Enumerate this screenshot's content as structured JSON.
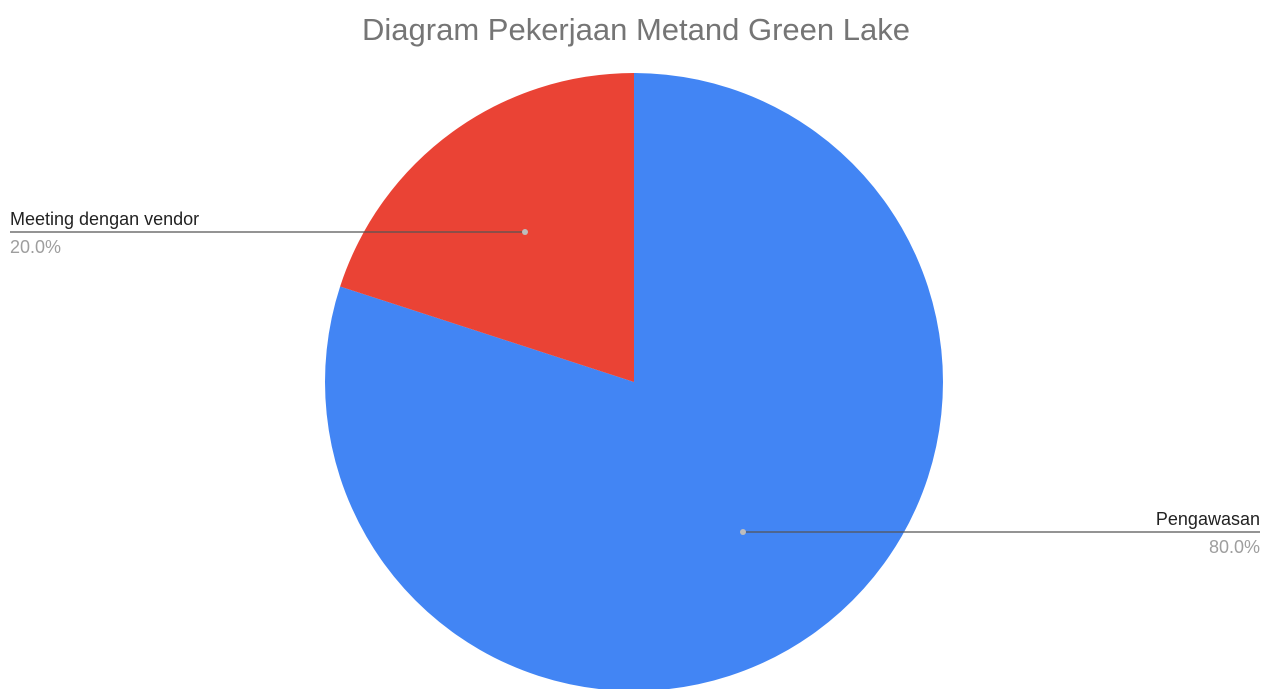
{
  "chart_data": {
    "type": "pie",
    "title": "Diagram Pekerjaan Metand Green Lake",
    "slices": [
      {
        "name": "Pengawasan",
        "value": 80.0,
        "label": "80.0%",
        "color": "#4285f4"
      },
      {
        "name": "Meeting dengan vendor",
        "value": 20.0,
        "label": "20.0%",
        "color": "#ea4335"
      }
    ],
    "start_angle_deg": 0,
    "direction": "clockwise",
    "legend": "none",
    "label_text_color": "#222222",
    "percent_text_color": "#9e9e9e",
    "title_color": "#757575",
    "leader_line_color": "#555555"
  }
}
